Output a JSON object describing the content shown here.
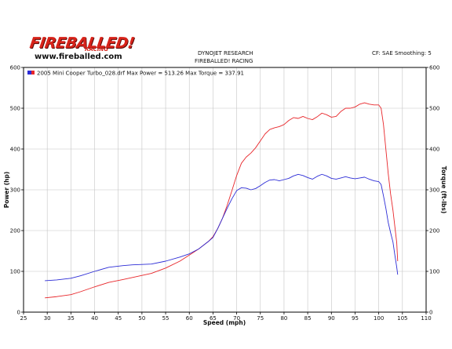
{
  "logo": {
    "wordmark": "FIREBALLED!",
    "tagline": "RACING",
    "url": "www.fireballed.com"
  },
  "header": {
    "line1": "DYNOJET RESEARCH",
    "line2": "FIREBALLED! RACING",
    "settings": "CF: SAE  Smoothing: 5"
  },
  "colors": {
    "power": "#e8262a",
    "torque": "#2c2cd6",
    "grid": "#c4c4c4",
    "frame": "#000000"
  },
  "chart_data": {
    "type": "line",
    "legend_text": "2005 Mini Cooper Turbo_028.drf Max Power = 513.26    Max Torque = 337.91",
    "legend_position": "top-left",
    "grid": true,
    "xlabel": "Speed (mph)",
    "ylabel_left": "Power (hp)",
    "ylabel_right": "Torque (ft-lbs)",
    "xlim": [
      25,
      110
    ],
    "ylim": [
      0,
      600
    ],
    "ylim_right": [
      0,
      600
    ],
    "x_ticks": [
      25,
      30,
      35,
      40,
      45,
      50,
      55,
      60,
      65,
      70,
      75,
      80,
      85,
      90,
      95,
      100,
      105,
      110
    ],
    "y_ticks": [
      0,
      100,
      200,
      300,
      400,
      500,
      600
    ],
    "series": [
      {
        "key": "power",
        "points": [
          [
            29.5,
            35
          ],
          [
            32,
            38
          ],
          [
            35,
            43
          ],
          [
            37,
            50
          ],
          [
            40,
            62
          ],
          [
            43,
            73
          ],
          [
            46,
            80
          ],
          [
            48,
            85
          ],
          [
            50,
            90
          ],
          [
            52,
            95
          ],
          [
            55,
            108
          ],
          [
            58,
            125
          ],
          [
            60,
            140
          ],
          [
            62,
            155
          ],
          [
            64,
            173
          ],
          [
            65,
            185
          ],
          [
            66,
            205
          ],
          [
            67,
            230
          ],
          [
            68,
            262
          ],
          [
            69,
            298
          ],
          [
            70,
            335
          ],
          [
            71,
            365
          ],
          [
            72,
            380
          ],
          [
            73,
            390
          ],
          [
            74,
            403
          ],
          [
            75,
            420
          ],
          [
            76,
            437
          ],
          [
            77,
            448
          ],
          [
            78,
            452
          ],
          [
            79,
            455
          ],
          [
            80,
            460
          ],
          [
            81,
            470
          ],
          [
            82,
            477
          ],
          [
            83,
            475
          ],
          [
            84,
            480
          ],
          [
            85,
            475
          ],
          [
            86,
            472
          ],
          [
            87,
            479
          ],
          [
            88,
            488
          ],
          [
            89,
            484
          ],
          [
            90,
            478
          ],
          [
            91,
            480
          ],
          [
            92,
            492
          ],
          [
            93,
            500
          ],
          [
            94,
            500
          ],
          [
            95,
            503
          ],
          [
            96,
            510
          ],
          [
            97,
            513.26
          ],
          [
            98,
            510
          ],
          [
            99,
            508
          ],
          [
            100,
            508
          ],
          [
            100.5,
            500
          ],
          [
            101,
            460
          ],
          [
            101.5,
            400
          ],
          [
            102,
            340
          ],
          [
            102.5,
            290
          ],
          [
            103,
            250
          ],
          [
            103.4,
            210
          ],
          [
            103.8,
            170
          ],
          [
            104,
            125
          ]
        ]
      },
      {
        "key": "torque",
        "points": [
          [
            29.5,
            77
          ],
          [
            32,
            79
          ],
          [
            35,
            83
          ],
          [
            37,
            89
          ],
          [
            40,
            100
          ],
          [
            43,
            110
          ],
          [
            46,
            114
          ],
          [
            48,
            116
          ],
          [
            50,
            117
          ],
          [
            52,
            118
          ],
          [
            55,
            125
          ],
          [
            58,
            135
          ],
          [
            60,
            143
          ],
          [
            62,
            155
          ],
          [
            64,
            173
          ],
          [
            65,
            183
          ],
          [
            66,
            205
          ],
          [
            67,
            230
          ],
          [
            68,
            255
          ],
          [
            69,
            278
          ],
          [
            70,
            298
          ],
          [
            71,
            305
          ],
          [
            72,
            304
          ],
          [
            73,
            300
          ],
          [
            74,
            303
          ],
          [
            75,
            310
          ],
          [
            76,
            318
          ],
          [
            77,
            324
          ],
          [
            78,
            325
          ],
          [
            79,
            322
          ],
          [
            80,
            325
          ],
          [
            81,
            328
          ],
          [
            82,
            334
          ],
          [
            83,
            337.91
          ],
          [
            84,
            335
          ],
          [
            85,
            330
          ],
          [
            86,
            326
          ],
          [
            87,
            333
          ],
          [
            88,
            338
          ],
          [
            89,
            334
          ],
          [
            90,
            328
          ],
          [
            91,
            326
          ],
          [
            92,
            329
          ],
          [
            93,
            332
          ],
          [
            94,
            329
          ],
          [
            95,
            327
          ],
          [
            96,
            329
          ],
          [
            97,
            331
          ],
          [
            98,
            326
          ],
          [
            99,
            322
          ],
          [
            100,
            320
          ],
          [
            100.5,
            313
          ],
          [
            101,
            285
          ],
          [
            101.5,
            255
          ],
          [
            102,
            220
          ],
          [
            102.5,
            195
          ],
          [
            103,
            172
          ],
          [
            103.4,
            140
          ],
          [
            103.8,
            110
          ],
          [
            104,
            92
          ]
        ]
      }
    ]
  }
}
